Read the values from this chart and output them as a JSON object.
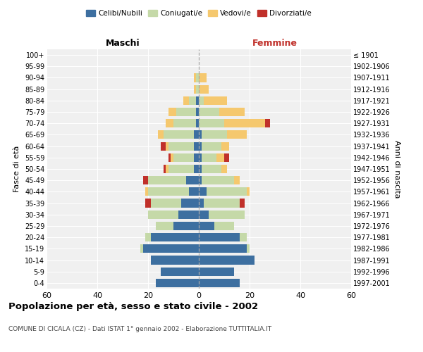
{
  "age_groups": [
    "0-4",
    "5-9",
    "10-14",
    "15-19",
    "20-24",
    "25-29",
    "30-34",
    "35-39",
    "40-44",
    "45-49",
    "50-54",
    "55-59",
    "60-64",
    "65-69",
    "70-74",
    "75-79",
    "80-84",
    "85-89",
    "90-94",
    "95-99",
    "100+"
  ],
  "birth_years": [
    "1997-2001",
    "1992-1996",
    "1987-1991",
    "1982-1986",
    "1977-1981",
    "1972-1976",
    "1967-1971",
    "1962-1966",
    "1957-1961",
    "1952-1956",
    "1947-1951",
    "1942-1946",
    "1937-1941",
    "1932-1936",
    "1927-1931",
    "1922-1926",
    "1917-1921",
    "1912-1916",
    "1907-1911",
    "1902-1906",
    "≤ 1901"
  ],
  "maschi": {
    "celibi": [
      17,
      15,
      19,
      22,
      19,
      10,
      8,
      7,
      4,
      5,
      2,
      2,
      2,
      2,
      1,
      1,
      1,
      0,
      0,
      0,
      0
    ],
    "coniugati": [
      0,
      0,
      0,
      1,
      2,
      7,
      12,
      12,
      16,
      15,
      10,
      8,
      10,
      12,
      9,
      8,
      3,
      1,
      1,
      0,
      0
    ],
    "vedovi": [
      0,
      0,
      0,
      0,
      0,
      0,
      0,
      0,
      1,
      0,
      1,
      1,
      1,
      2,
      3,
      3,
      2,
      1,
      1,
      0,
      0
    ],
    "divorziati": [
      0,
      0,
      0,
      0,
      0,
      0,
      0,
      2,
      0,
      2,
      1,
      1,
      2,
      0,
      0,
      0,
      0,
      0,
      0,
      0,
      0
    ]
  },
  "femmine": {
    "nubili": [
      16,
      14,
      22,
      19,
      16,
      6,
      4,
      2,
      3,
      1,
      1,
      1,
      1,
      1,
      0,
      0,
      0,
      0,
      0,
      0,
      0
    ],
    "coniugate": [
      0,
      0,
      0,
      1,
      3,
      8,
      14,
      14,
      16,
      13,
      8,
      6,
      8,
      10,
      10,
      8,
      2,
      0,
      0,
      0,
      0
    ],
    "vedove": [
      0,
      0,
      0,
      0,
      0,
      0,
      0,
      0,
      1,
      2,
      2,
      3,
      3,
      8,
      16,
      10,
      9,
      4,
      3,
      0,
      0
    ],
    "divorziate": [
      0,
      0,
      0,
      0,
      0,
      0,
      0,
      2,
      0,
      0,
      0,
      2,
      0,
      0,
      2,
      0,
      0,
      0,
      0,
      0,
      0
    ]
  },
  "colors": {
    "celibi": "#3d6fa0",
    "coniugati": "#c5d9a8",
    "vedovi": "#f5c86e",
    "divorziati": "#c0302a"
  },
  "title": "Popolazione per età, sesso e stato civile - 2002",
  "subtitle": "COMUNE DI CICALA (CZ) - Dati ISTAT 1° gennaio 2002 - Elaborazione TUTTITALIA.IT",
  "xlabel_left": "Maschi",
  "xlabel_right": "Femmine",
  "ylabel_left": "Fasce di età",
  "ylabel_right": "Anni di nascita",
  "xlim": 60,
  "legend_labels": [
    "Celibi/Nubili",
    "Coniugati/e",
    "Vedovi/e",
    "Divorziati/e"
  ],
  "bg_color": "#f0f0f0",
  "bar_height": 0.75
}
